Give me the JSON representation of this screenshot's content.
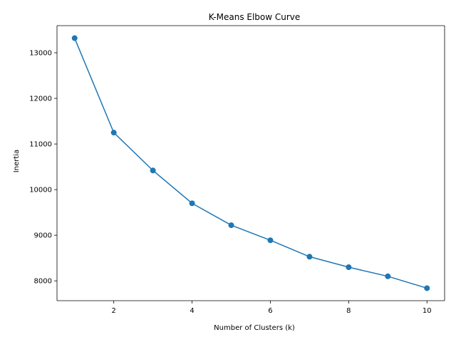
{
  "chart_data": {
    "type": "line",
    "title": "K-Means Elbow Curve",
    "xlabel": "Number of Clusters (k)",
    "ylabel": "Inertia",
    "x": [
      1,
      2,
      3,
      4,
      5,
      6,
      7,
      8,
      9,
      10
    ],
    "series": [
      {
        "values": [
          13320,
          11250,
          10420,
          9700,
          9220,
          8890,
          8530,
          8300,
          8100,
          7840
        ],
        "color": "#1f77b4",
        "marker": "circle"
      }
    ],
    "xlim": [
      0.55,
      10.45
    ],
    "ylim": [
      7566,
      13594
    ],
    "xticks": [
      2,
      4,
      6,
      8,
      10
    ],
    "yticks": [
      8000,
      9000,
      10000,
      11000,
      12000,
      13000
    ],
    "grid": false,
    "legend": "none"
  }
}
